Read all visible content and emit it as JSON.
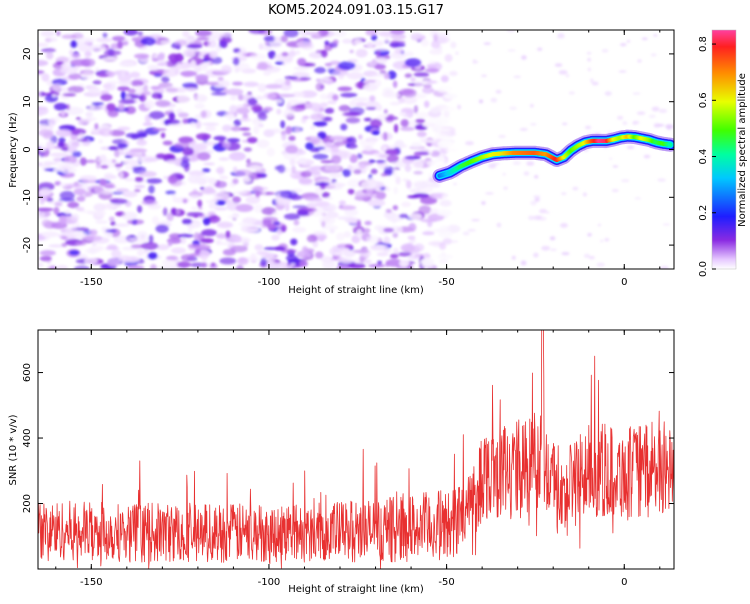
{
  "title": "KOM5.2024.091.03.15.G17",
  "chart_data": [
    {
      "type": "heatmap",
      "xlabel": "Height of straight line (km)",
      "ylabel": "Frequency (Hz)",
      "xlim": [
        -165,
        14
      ],
      "ylim": [
        -25,
        25
      ],
      "x_ticks": [
        -150,
        -100,
        -50,
        0
      ],
      "x_tick_labels": [
        "-150",
        "-100",
        "-50",
        "0"
      ],
      "y_ticks": [
        -20,
        -10,
        0,
        10,
        20
      ],
      "y_tick_labels": [
        "-20",
        "-10",
        "0",
        "10",
        "20"
      ],
      "colorbar": {
        "label": "Normalized spectral amplitude",
        "range": [
          0.0,
          0.85
        ],
        "ticks": [
          0.0,
          0.2,
          0.4,
          0.6,
          0.8
        ],
        "tick_labels": [
          "0.0",
          "0.2",
          "0.4",
          "0.6",
          "0.8"
        ],
        "colormap": "rainbow (white-violet-blue-cyan-green-yellow-red)"
      },
      "noise_region_x": [
        -165,
        -48
      ],
      "noise_amplitude_range": [
        0.0,
        0.15
      ],
      "trace": {
        "x": [
          -52,
          -49,
          -46,
          -43,
          -40,
          -37,
          -34,
          -31,
          -28,
          -25,
          -22,
          -19,
          -17,
          -15,
          -13,
          -11,
          -9,
          -7,
          -5,
          -3,
          -1,
          1,
          3,
          5,
          7,
          9,
          11,
          13
        ],
        "freq": [
          -5.5,
          -4.8,
          -3.5,
          -2.5,
          -1.6,
          -1.0,
          -0.8,
          -0.7,
          -0.7,
          -0.7,
          -1.0,
          -2.2,
          -1.6,
          -0.2,
          0.8,
          1.5,
          1.8,
          1.8,
          1.8,
          2.1,
          2.5,
          2.7,
          2.6,
          2.3,
          2.0,
          1.5,
          1.2,
          1.0
        ],
        "amp": [
          0.25,
          0.35,
          0.45,
          0.5,
          0.55,
          0.6,
          0.62,
          0.7,
          0.72,
          0.74,
          0.68,
          0.8,
          0.6,
          0.5,
          0.55,
          0.6,
          0.75,
          0.84,
          0.82,
          0.6,
          0.55,
          0.65,
          0.5,
          0.6,
          0.55,
          0.45,
          0.5,
          0.4
        ]
      }
    },
    {
      "type": "line",
      "xlabel": "Height of straight line (km)",
      "ylabel": "SNR (10 * v/v)",
      "xlim": [
        -165,
        14
      ],
      "ylim": [
        0,
        730
      ],
      "x_ticks": [
        -150,
        -100,
        -50,
        0
      ],
      "x_tick_labels": [
        "-150",
        "-100",
        "-50",
        "0"
      ],
      "y_ticks": [
        200,
        400,
        600
      ],
      "y_tick_labels": [
        "200",
        "400",
        "600"
      ],
      "series": [
        {
          "color": "#e83030",
          "x": [
            -165,
            -150,
            -140,
            -130,
            -120,
            -110,
            -100,
            -90,
            -80,
            -70,
            -60,
            -50,
            -45,
            -42,
            -40,
            -35,
            -30,
            -25,
            -22,
            -20,
            -17,
            -15,
            -10,
            -5,
            0,
            5,
            10,
            14
          ],
          "baseline": [
            120,
            115,
            112,
            110,
            112,
            110,
            110,
            112,
            115,
            118,
            125,
            135,
            160,
            220,
            290,
            300,
            310,
            320,
            340,
            260,
            200,
            260,
            300,
            300,
            290,
            300,
            310,
            300
          ],
          "spread": [
            70,
            70,
            70,
            70,
            70,
            70,
            70,
            70,
            72,
            75,
            80,
            85,
            90,
            100,
            110,
            110,
            115,
            120,
            130,
            110,
            90,
            110,
            110,
            110,
            110,
            110,
            110,
            110
          ],
          "peak_max": 730
        }
      ]
    }
  ],
  "colors": {
    "snr_line": "#e83030",
    "axis": "#000000",
    "background": "#ffffff"
  }
}
